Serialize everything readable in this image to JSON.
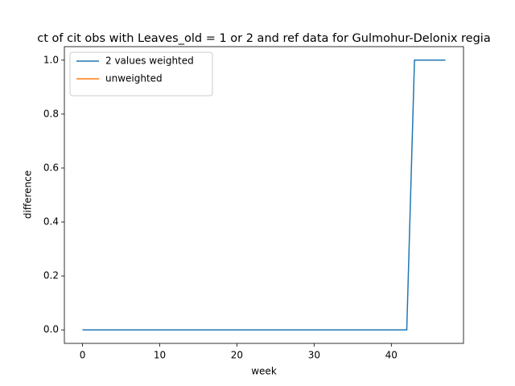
{
  "chart_data": {
    "type": "line",
    "title": "ct of cit obs with Leaves_old = 1 or 2 and ref data for Gulmohur-Delonix regia",
    "xlabel": "week",
    "ylabel": "difference",
    "x": [
      0,
      1,
      2,
      3,
      4,
      5,
      6,
      7,
      8,
      9,
      10,
      11,
      12,
      13,
      14,
      15,
      16,
      17,
      18,
      19,
      20,
      21,
      22,
      23,
      24,
      25,
      26,
      27,
      28,
      29,
      30,
      31,
      32,
      33,
      34,
      35,
      36,
      37,
      38,
      39,
      40,
      41,
      42,
      43,
      44,
      45,
      46,
      47
    ],
    "series": [
      {
        "name": "2 values weighted",
        "color": "#1f77b4",
        "values": [
          0,
          0,
          0,
          0,
          0,
          0,
          0,
          0,
          0,
          0,
          0,
          0,
          0,
          0,
          0,
          0,
          0,
          0,
          0,
          0,
          0,
          0,
          0,
          0,
          0,
          0,
          0,
          0,
          0,
          0,
          0,
          0,
          0,
          0,
          0,
          0,
          0,
          0,
          0,
          0,
          0,
          0,
          0,
          1,
          1,
          1,
          1,
          1
        ]
      },
      {
        "name": "unweighted",
        "color": "#ff7f0e",
        "values": [
          null,
          null,
          null,
          null,
          null,
          null,
          null,
          null,
          null,
          null,
          null,
          null,
          null,
          null,
          null,
          null,
          null,
          null,
          null,
          null,
          null,
          null,
          null,
          null,
          null,
          null,
          null,
          null,
          null,
          null,
          null,
          null,
          null,
          null,
          null,
          null,
          null,
          null,
          null,
          null,
          null,
          null,
          null,
          null,
          null,
          null,
          null,
          null
        ]
      }
    ],
    "xlim": [
      -2.35,
      49.35
    ],
    "xticks": [
      0,
      10,
      20,
      30,
      40
    ],
    "ylim": [
      -0.05,
      1.05
    ],
    "yticks": [
      {
        "value": 0,
        "label": "0.0"
      },
      {
        "value": 0.2,
        "label": "0.2"
      },
      {
        "value": 0.4,
        "label": "0.4"
      },
      {
        "value": 0.6,
        "label": "0.6"
      },
      {
        "value": 0.8,
        "label": "0.8"
      },
      {
        "value": 1.0,
        "label": "1.0"
      }
    ],
    "legend": "upper left"
  }
}
